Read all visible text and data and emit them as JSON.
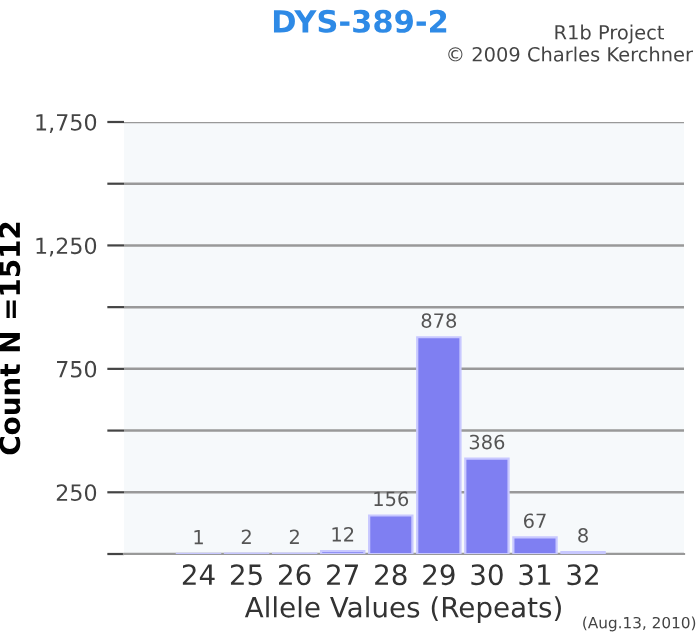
{
  "chart_data": {
    "type": "bar",
    "title": "DYS-389-2",
    "xlabel": "Allele Values (Repeats)",
    "ylabel": "Count N =1512",
    "categories": [
      "24",
      "25",
      "26",
      "27",
      "28",
      "29",
      "30",
      "31",
      "32"
    ],
    "values": [
      1,
      2,
      2,
      12,
      156,
      878,
      386,
      67,
      8
    ],
    "color": "#7f7ff2",
    "ylim": [
      0,
      1750
    ],
    "yticks": [
      {
        "value": 0,
        "label": null
      },
      250,
      {
        "value": 500,
        "label": null
      },
      750,
      {
        "value": 1000,
        "label": null
      },
      {
        "value": 1250,
        "label": "1,250"
      },
      {
        "value": 1500,
        "label": null
      },
      {
        "value": 1750,
        "label": "1,750"
      }
    ],
    "grid": "y",
    "data_labels": true,
    "annotations": [
      "R1b Project",
      "© 2009 Charles Kerchner",
      "(Aug.13, 2010)"
    ]
  }
}
